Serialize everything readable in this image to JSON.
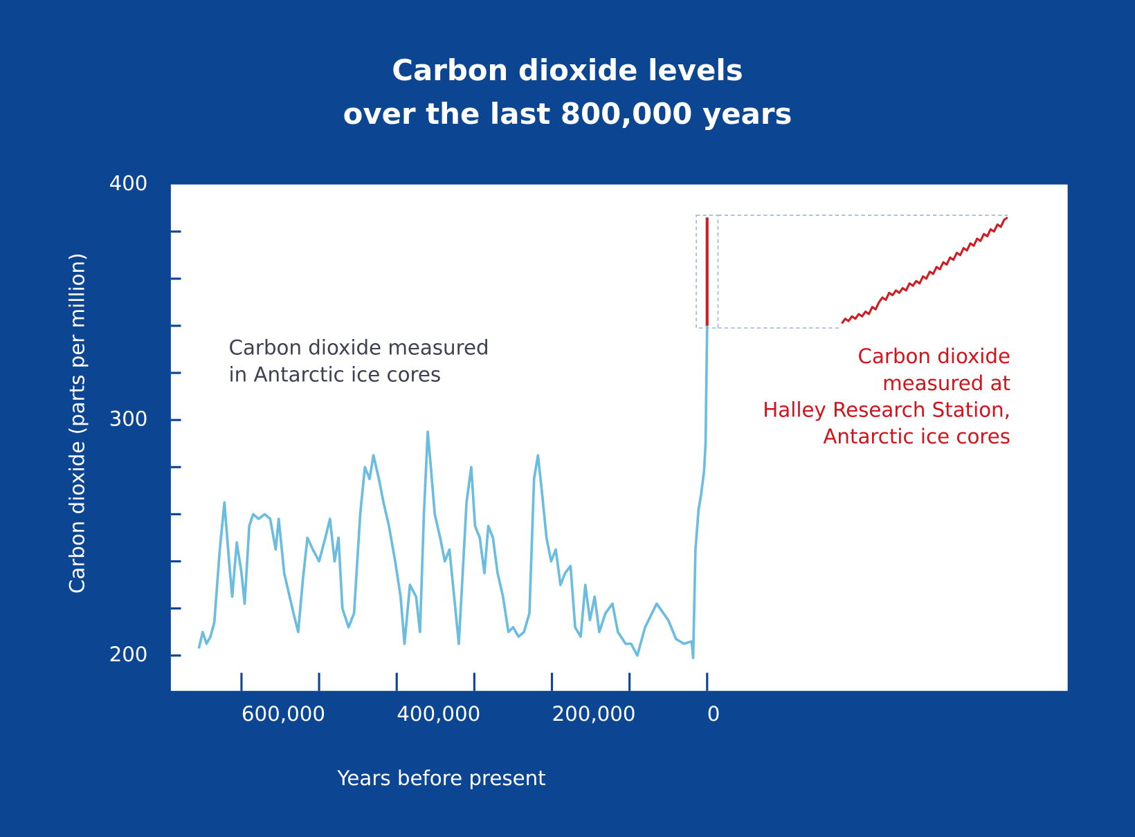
{
  "chart_data": {
    "type": "line",
    "title": [
      "Carbon dioxide levels",
      "over the last 800,000 years"
    ],
    "x_label": "Years before present",
    "y_label": "Carbon dioxide (parts per million)",
    "annotations": [
      {
        "lines": [
          "Carbon dioxide measured",
          "in Antarctic ice cores"
        ],
        "color": "#3d4152"
      },
      {
        "lines": [
          "Carbon dioxide",
          "measured at",
          "Halley Research Station,",
          "Antarctic ice cores"
        ],
        "color": "#d0141c"
      }
    ],
    "xlim": [
      691000,
      -464500
    ],
    "ylim": [
      185,
      400
    ],
    "xticks": [
      {
        "value": 600000,
        "label": "600,000"
      },
      {
        "value": 400000,
        "label": "400,000"
      },
      {
        "value": 200000,
        "label": "200,000"
      },
      0
    ],
    "xminor_ticks": [
      500000,
      300000,
      100000
    ],
    "yticks": [
      200,
      300,
      400
    ],
    "yminor_ticks": [
      220,
      240,
      260,
      280,
      320,
      340,
      360,
      380
    ],
    "series": [
      {
        "color": "#6bbde0",
        "x": [
          655000,
          650000,
          645000,
          640000,
          635000,
          628000,
          622000,
          616000,
          612000,
          606000,
          600000,
          596000,
          590000,
          585000,
          578000,
          570000,
          563000,
          556000,
          552000,
          545000,
          538000,
          533000,
          527000,
          521000,
          515000,
          508000,
          500000,
          492000,
          486000,
          480000,
          475000,
          470000,
          462000,
          455000,
          447000,
          441000,
          435000,
          430000,
          423000,
          417000,
          410000,
          402000,
          395000,
          390000,
          383000,
          375000,
          370000,
          365000,
          360000,
          356000,
          351000,
          344000,
          338000,
          332000,
          326000,
          320000,
          315000,
          310000,
          304000,
          299000,
          293000,
          287000,
          282000,
          276000,
          270000,
          263000,
          256000,
          250000,
          243000,
          236000,
          229000,
          223000,
          218000,
          213000,
          207000,
          201000,
          195000,
          189000,
          183000,
          176000,
          170000,
          163000,
          157000,
          151000,
          145000,
          139000,
          131000,
          122000,
          115000,
          105000,
          98000,
          90000,
          80000,
          65000,
          50000,
          40000,
          30000,
          20000,
          18000,
          15000,
          11000,
          8000,
          4000,
          2000,
          0
        ],
        "values": [
          203,
          210,
          205,
          208,
          214,
          245,
          265,
          240,
          225,
          248,
          235,
          222,
          255,
          260,
          258,
          260,
          258,
          245,
          258,
          235,
          225,
          218,
          210,
          232,
          250,
          245,
          240,
          250,
          258,
          240,
          250,
          220,
          212,
          218,
          260,
          280,
          275,
          285,
          275,
          265,
          255,
          240,
          225,
          205,
          230,
          225,
          210,
          260,
          295,
          280,
          260,
          250,
          240,
          245,
          225,
          205,
          235,
          265,
          280,
          255,
          250,
          235,
          255,
          250,
          235,
          225,
          210,
          212,
          208,
          210,
          218,
          275,
          285,
          270,
          250,
          240,
          245,
          230,
          235,
          238,
          212,
          208,
          230,
          215,
          225,
          210,
          218,
          222,
          210,
          205,
          205,
          200,
          212,
          222,
          215,
          207,
          205,
          206,
          199,
          245,
          262,
          268,
          278,
          290,
          340
        ]
      },
      {
        "color": "#cc1f24",
        "x": [
          0,
          0
        ],
        "values": [
          340,
          386
        ]
      }
    ],
    "inset": {
      "color": "#cc1f24",
      "values": [
        341,
        343,
        342,
        344,
        343,
        345,
        344,
        346,
        345,
        348,
        347,
        350,
        352,
        351,
        354,
        353,
        355,
        354,
        356,
        355,
        358,
        357,
        359,
        358,
        361,
        360,
        363,
        362,
        365,
        364,
        367,
        366,
        369,
        368,
        371,
        370,
        373,
        372,
        375,
        374,
        377,
        376,
        379,
        378,
        381,
        380,
        383,
        382,
        385,
        386
      ]
    }
  }
}
